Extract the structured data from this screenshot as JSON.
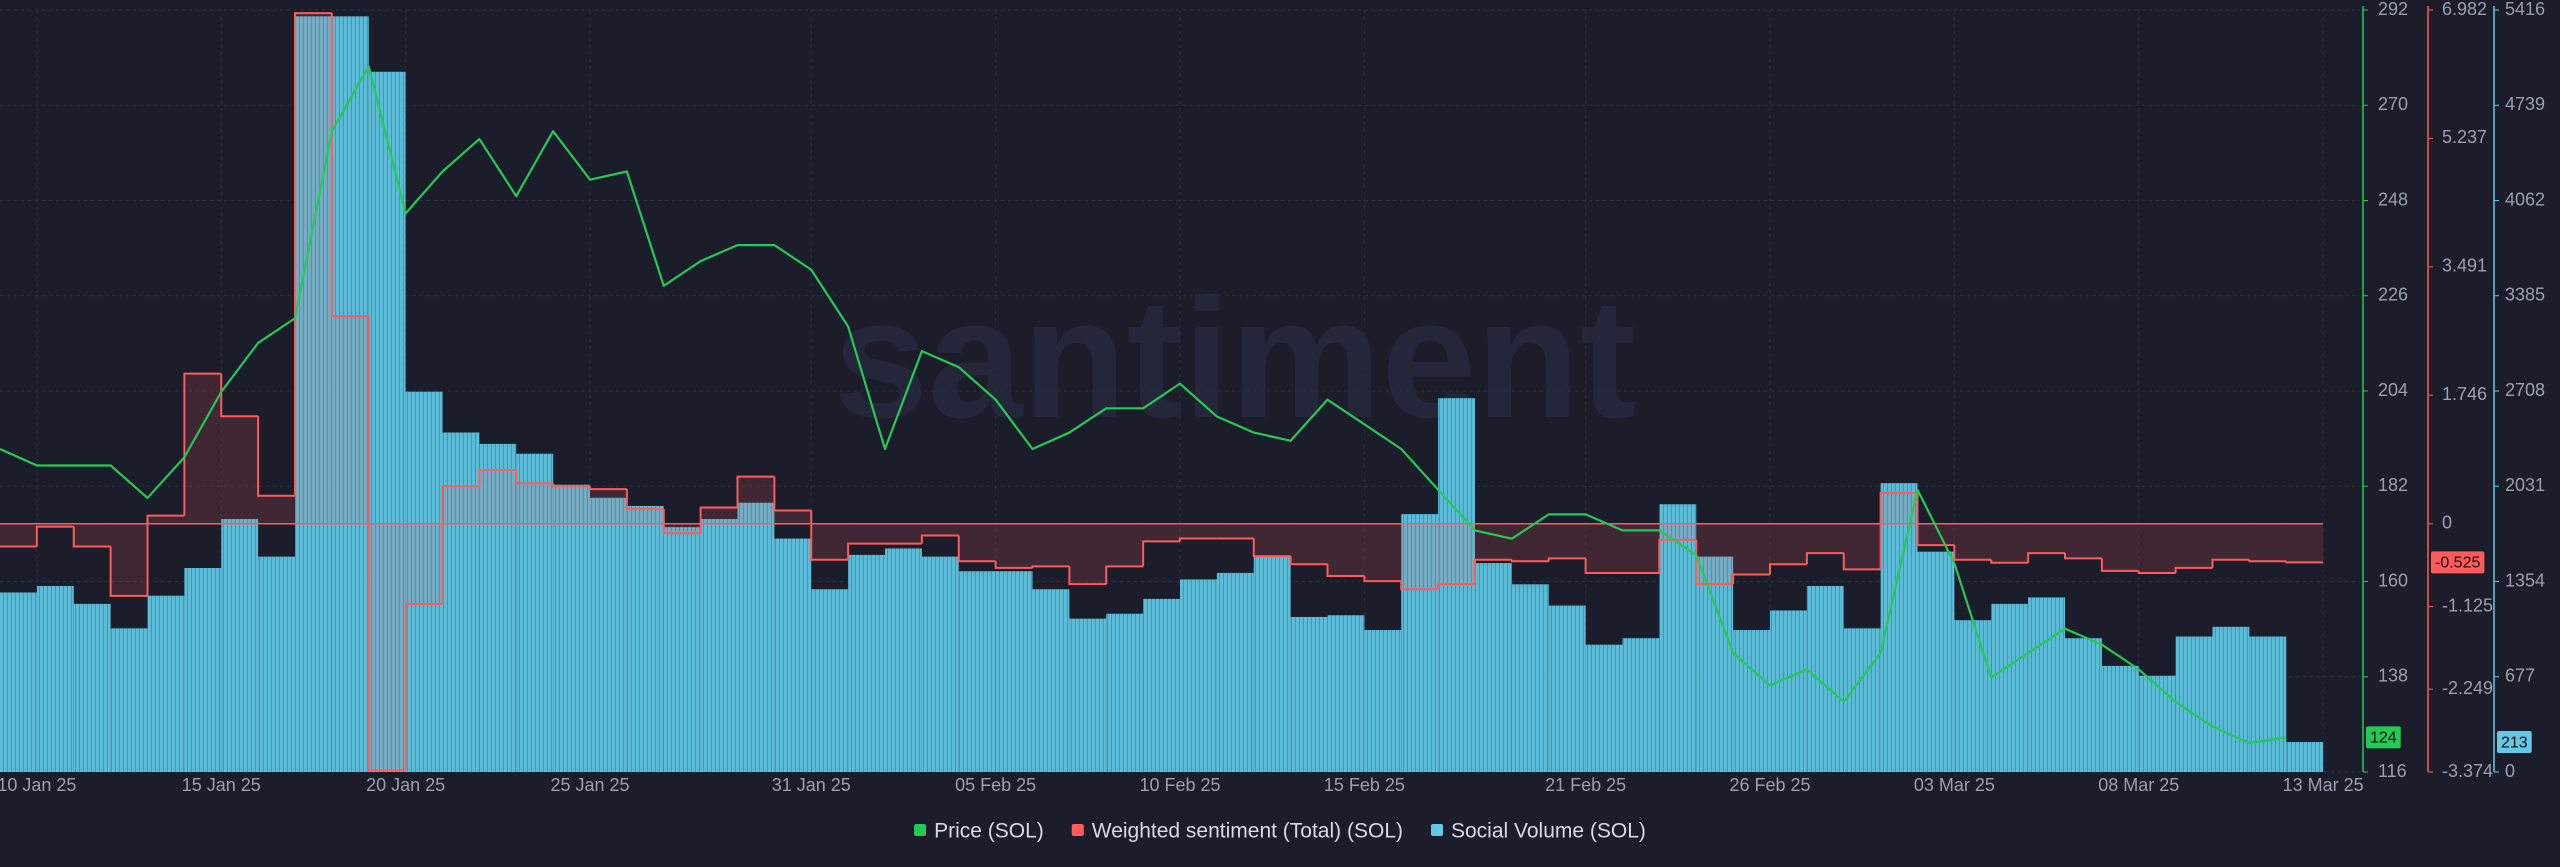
{
  "chart_data": {
    "type": "multi-axis",
    "watermark": "santiment",
    "grid": true,
    "x": [
      "2025-01-09",
      "2025-01-10",
      "2025-01-11",
      "2025-01-12",
      "2025-01-13",
      "2025-01-14",
      "2025-01-15",
      "2025-01-16",
      "2025-01-17",
      "2025-01-18",
      "2025-01-19",
      "2025-01-20",
      "2025-01-21",
      "2025-01-22",
      "2025-01-23",
      "2025-01-24",
      "2025-01-25",
      "2025-01-26",
      "2025-01-27",
      "2025-01-28",
      "2025-01-29",
      "2025-01-30",
      "2025-01-31",
      "2025-02-01",
      "2025-02-02",
      "2025-02-03",
      "2025-02-04",
      "2025-02-05",
      "2025-02-06",
      "2025-02-07",
      "2025-02-08",
      "2025-02-09",
      "2025-02-10",
      "2025-02-11",
      "2025-02-12",
      "2025-02-13",
      "2025-02-14",
      "2025-02-15",
      "2025-02-16",
      "2025-02-17",
      "2025-02-18",
      "2025-02-19",
      "2025-02-20",
      "2025-02-21",
      "2025-02-22",
      "2025-02-23",
      "2025-02-24",
      "2025-02-25",
      "2025-02-26",
      "2025-02-27",
      "2025-02-28",
      "2025-03-01",
      "2025-03-02",
      "2025-03-03",
      "2025-03-04",
      "2025-03-05",
      "2025-03-06",
      "2025-03-07",
      "2025-03-08",
      "2025-03-09",
      "2025-03-10",
      "2025-03-11",
      "2025-03-12"
    ],
    "xlim": [
      "2025-01-09",
      "2025-03-14"
    ],
    "xticks": [
      {
        "value": "2025-01-10",
        "label": "10 Jan 25"
      },
      {
        "value": "2025-01-15",
        "label": "15 Jan 25"
      },
      {
        "value": "2025-01-20",
        "label": "20 Jan 25"
      },
      {
        "value": "2025-01-25",
        "label": "25 Jan 25"
      },
      {
        "value": "2025-01-31",
        "label": "31 Jan 25"
      },
      {
        "value": "2025-02-05",
        "label": "05 Feb 25"
      },
      {
        "value": "2025-02-10",
        "label": "10 Feb 25"
      },
      {
        "value": "2025-02-15",
        "label": "15 Feb 25"
      },
      {
        "value": "2025-02-21",
        "label": "21 Feb 25"
      },
      {
        "value": "2025-02-26",
        "label": "26 Feb 25"
      },
      {
        "value": "2025-03-03",
        "label": "03 Mar 25"
      },
      {
        "value": "2025-03-08",
        "label": "08 Mar 25"
      },
      {
        "value": "2025-03-13",
        "label": "13 Mar 25"
      }
    ],
    "ylim": [
      116,
      292
    ],
    "yticks": [
      116,
      138,
      160,
      182,
      204,
      226,
      248,
      270,
      292
    ],
    "y2lim": [
      -3.374,
      6.982
    ],
    "y2ticks": [
      -3.374,
      -2.249,
      -1.125,
      0,
      1.746,
      3.491,
      5.237,
      6.982
    ],
    "y3lim": [
      0,
      5416
    ],
    "y3ticks": [
      0,
      677,
      1354,
      2031,
      2708,
      3385,
      4062,
      4739,
      5416
    ],
    "series": [
      {
        "name": "Price (SOL)",
        "color": "#26c953",
        "kind": "line",
        "axis": "y",
        "values": [
          190.6,
          186.8,
          186.8,
          186.8,
          179.3,
          188.7,
          203.8,
          215.1,
          220.8,
          264,
          279,
          245,
          254.7,
          262.2,
          249,
          264,
          252.8,
          254.7,
          228.3,
          234,
          237.7,
          237.7,
          232,
          218.9,
          190.6,
          213.2,
          209.5,
          202,
          190.6,
          194.4,
          200,
          200,
          205.7,
          198.1,
          194.4,
          192.5,
          202,
          196.3,
          190.6,
          181.2,
          171.8,
          169.9,
          175.5,
          175.5,
          171.8,
          171.8,
          166.1,
          143.5,
          136,
          139.7,
          132.2,
          143.5,
          181.2,
          164.2,
          137.8,
          143.5,
          149.1,
          145.4,
          139.7,
          132.2,
          126.5,
          122.7,
          124
        ]
      },
      {
        "name": "Weighted sentiment (Total) (SOL)",
        "color": "#ff5b5b",
        "kind": "step",
        "axis": "y2",
        "values": [
          -0.31,
          -0.04,
          -0.31,
          -0.98,
          0.11,
          2.04,
          1.46,
          0.38,
          6.94,
          2.82,
          -3.35,
          -1.09,
          0.51,
          0.73,
          0.55,
          0.51,
          0.47,
          0.2,
          -0.13,
          0.22,
          0.64,
          0.18,
          -0.49,
          -0.27,
          -0.27,
          -0.16,
          -0.51,
          -0.6,
          -0.58,
          -0.82,
          -0.58,
          -0.24,
          -0.2,
          -0.2,
          -0.44,
          -0.55,
          -0.71,
          -0.78,
          -0.89,
          -0.82,
          -0.49,
          -0.51,
          -0.47,
          -0.67,
          -0.67,
          -0.22,
          -0.82,
          -0.69,
          -0.55,
          -0.4,
          -0.62,
          0.42,
          -0.29,
          -0.49,
          -0.53,
          -0.4,
          -0.47,
          -0.64,
          -0.67,
          -0.6,
          -0.49,
          -0.51,
          -0.525
        ]
      },
      {
        "name": "Social Volume (SOL)",
        "color": "#62c9e6",
        "kind": "bar",
        "axis": "y3",
        "values": [
          1276,
          1322,
          1195,
          1021,
          1253,
          1450,
          1798,
          1531,
          5371,
          5371,
          4977,
          2703,
          2413,
          2332,
          2262,
          2042,
          1949,
          1891,
          1740,
          1798,
          1914,
          1659,
          1299,
          1543,
          1589,
          1531,
          1427,
          1427,
          1299,
          1090,
          1125,
          1230,
          1369,
          1415,
          1531,
          1102,
          1114,
          1009,
          1833,
          2657,
          1485,
          1334,
          1183,
          905,
          951,
          1903,
          1531,
          1009,
          1148,
          1322,
          1021,
          2053,
          1566,
          1079,
          1195,
          1241,
          951,
          754,
          684,
          963,
          1032,
          963,
          213
        ]
      }
    ]
  }
}
